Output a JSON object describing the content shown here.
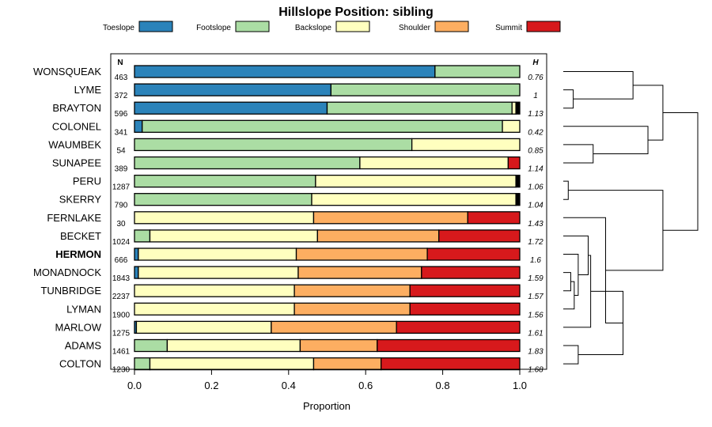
{
  "chart_data": {
    "type": "bar",
    "stacked": true,
    "orientation": "horizontal",
    "title": "Hillslope Position: sibling",
    "xlabel": "Proportion",
    "ylabel": "",
    "xlim": [
      0,
      1
    ],
    "xticks": [
      "0.0",
      "0.2",
      "0.4",
      "0.6",
      "0.8",
      "1.0"
    ],
    "xtick_values": [
      0,
      0.2,
      0.4,
      0.6,
      0.8,
      1.0
    ],
    "n_header": "N",
    "h_header": "H",
    "highlight_category": "HERMON",
    "legend_placement": "top",
    "legend": [
      {
        "name": "Toeslope",
        "color": "#2b83ba"
      },
      {
        "name": "Footslope",
        "color": "#abdda4"
      },
      {
        "name": "Backslope",
        "color": "#ffffbf"
      },
      {
        "name": "Shoulder",
        "color": "#fdae61"
      },
      {
        "name": "Summit",
        "color": "#d7191c"
      }
    ],
    "categories": [
      "WONSQUEAK",
      "LYME",
      "BRAYTON",
      "COLONEL",
      "WAUMBEK",
      "SUNAPEE",
      "PERU",
      "SKERRY",
      "FERNLAKE",
      "BECKET",
      "HERMON",
      "MONADNOCK",
      "TUNBRIDGE",
      "LYMAN",
      "MARLOW",
      "ADAMS",
      "COLTON"
    ],
    "n": [
      "463",
      "372",
      "596",
      "341",
      "54",
      "389",
      "1287",
      "790",
      "30",
      "1024",
      "666",
      "1843",
      "2237",
      "1900",
      "1275",
      "1461",
      "1230"
    ],
    "h": [
      "0.76",
      "1",
      "1.13",
      "0.42",
      "0.85",
      "1.14",
      "1.06",
      "1.04",
      "1.43",
      "1.72",
      "1.6",
      "1.59",
      "1.57",
      "1.56",
      "1.61",
      "1.83",
      "1.68"
    ],
    "series": [
      {
        "name": "Toeslope",
        "values": [
          0.78,
          0.51,
          0.5,
          0.02,
          0,
          0,
          0,
          0,
          0,
          0,
          0.01,
          0.01,
          0,
          0,
          0.005,
          0,
          0
        ]
      },
      {
        "name": "Footslope",
        "values": [
          0.22,
          0.49,
          0.48,
          0.935,
          0.72,
          0.585,
          0.47,
          0.46,
          0,
          0.04,
          0,
          0,
          0,
          0,
          0,
          0.085,
          0.04
        ]
      },
      {
        "name": "Backslope",
        "values": [
          0,
          0,
          0.01,
          0.045,
          0.28,
          0.385,
          0.52,
          0.53,
          0.465,
          0.435,
          0.41,
          0.415,
          0.415,
          0.415,
          0.35,
          0.345,
          0.425
        ]
      },
      {
        "name": "Shoulder",
        "values": [
          0,
          0,
          0,
          0,
          0,
          0,
          0,
          0,
          0.4,
          0.315,
          0.34,
          0.32,
          0.3,
          0.3,
          0.325,
          0.2,
          0.175
        ]
      },
      {
        "name": "Summit",
        "values": [
          0,
          0,
          0,
          0,
          0,
          0.03,
          0,
          0,
          0.135,
          0.21,
          0.24,
          0.255,
          0.285,
          0.285,
          0.32,
          0.37,
          0.36
        ]
      },
      {
        "name": "Unlabeled",
        "values": [
          0,
          0,
          0.01,
          0,
          0,
          0,
          0.01,
          0.01,
          0,
          0,
          0,
          0,
          0,
          0,
          0,
          0,
          0
        ]
      }
    ],
    "dendrogram": {
      "leaves": [
        "WONSQUEAK",
        "LYME",
        "BRAYTON",
        "COLONEL",
        "WAUMBEK",
        "SUNAPEE",
        "PERU",
        "SKERRY",
        "FERNLAKE",
        "BECKET",
        "HERMON",
        "MONADNOCK",
        "TUNBRIDGE",
        "LYMAN",
        "MARLOW",
        "ADAMS",
        "COLTON"
      ],
      "merges": [
        [
          -2,
          -3,
          0.02
        ],
        [
          -1,
          1,
          0.14
        ],
        [
          -5,
          -6,
          0.06
        ],
        [
          -4,
          3,
          0.17
        ],
        [
          2,
          4,
          0.2
        ],
        [
          -7,
          -8,
          0.01
        ],
        [
          -12,
          -13,
          0.015
        ],
        [
          7,
          -14,
          0.022
        ],
        [
          -11,
          8,
          0.03
        ],
        [
          9,
          -10,
          0.05
        ],
        [
          10,
          -15,
          0.055
        ],
        [
          -16,
          -17,
          0.03
        ],
        [
          11,
          12,
          0.12
        ],
        [
          -9,
          13,
          0.085
        ],
        [
          6,
          14,
          0.2
        ],
        [
          5,
          15,
          0.27
        ]
      ]
    }
  }
}
